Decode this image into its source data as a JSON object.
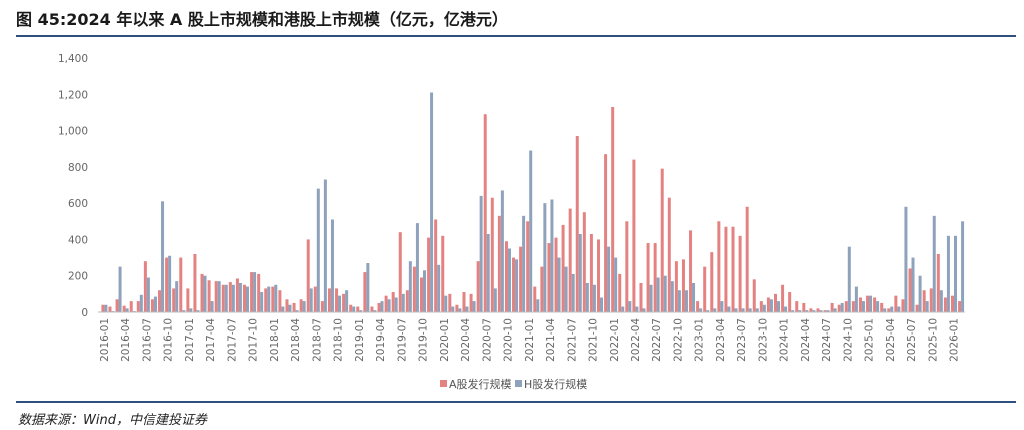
{
  "title": "图 45:2024 年以来 A 股上市规模和港股上市规模（亿元，亿港元）",
  "source": "数据来源：Wind，中信建投证券",
  "colors": {
    "a_share": "#e48282",
    "h_share": "#8ea2bb"
  },
  "chart_data": {
    "type": "bar",
    "title": "2024 年以来 A 股上市规模和港股上市规模（亿元，亿港元）",
    "ylim": [
      0,
      1400
    ],
    "yticks": [
      "0",
      "200",
      "400",
      "600",
      "800",
      "1,000",
      "1,200",
      "1,400"
    ],
    "start_month": "2016-01",
    "xtick_labels": [
      "2016-01",
      "2016-04",
      "2016-07",
      "2016-10",
      "2017-01",
      "2017-04",
      "2017-07",
      "2017-10",
      "2018-01",
      "2018-04",
      "2018-07",
      "2018-10",
      "2019-01",
      "2019-04",
      "2019-07",
      "2019-10",
      "2020-01",
      "2020-04",
      "2020-07",
      "2020-10",
      "2021-01",
      "2021-04",
      "2021-07",
      "2021-10",
      "2022-01",
      "2022-04",
      "2022-07",
      "2022-10",
      "2023-01",
      "2023-04",
      "2023-07",
      "2023-10",
      "2024-01",
      "2024-04",
      "2024-07",
      "2024-10",
      "2025-01",
      "2025-04",
      "2025-07",
      "2025-10",
      "2026-01"
    ],
    "legend_position": "bottom",
    "series": [
      {
        "name": "A股发行规模",
        "values": [
          40,
          30,
          70,
          35,
          60,
          60,
          280,
          70,
          120,
          300,
          130,
          300,
          130,
          320,
          210,
          175,
          170,
          150,
          165,
          185,
          150,
          220,
          210,
          130,
          140,
          120,
          70,
          50,
          70,
          400,
          140,
          60,
          130,
          130,
          100,
          40,
          30,
          220,
          30,
          50,
          90,
          110,
          440,
          120,
          250,
          190,
          410,
          510,
          420,
          100,
          40,
          110,
          100,
          280,
          1090,
          630,
          530,
          390,
          300,
          360,
          500,
          140,
          250,
          380,
          410,
          480,
          570,
          970,
          550,
          430,
          400,
          870,
          1130,
          210,
          500,
          840,
          160,
          380,
          380,
          790,
          630,
          280,
          290,
          450,
          60,
          250,
          330,
          500,
          470,
          470,
          420,
          580,
          180,
          60,
          80,
          100,
          150,
          110,
          60,
          50,
          20,
          20,
          10,
          50,
          40,
          60,
          60,
          80,
          90,
          80,
          50,
          20,
          90,
          70,
          240,
          40,
          120,
          130,
          320,
          80,
          90,
          60
        ]
      },
      {
        "name": "H股发行规模",
        "values": [
          40,
          5,
          250,
          20,
          5,
          95,
          190,
          85,
          610,
          310,
          170,
          10,
          20,
          10,
          200,
          60,
          170,
          150,
          150,
          160,
          140,
          220,
          110,
          140,
          150,
          30,
          40,
          10,
          60,
          130,
          680,
          730,
          510,
          90,
          120,
          30,
          10,
          270,
          10,
          60,
          70,
          80,
          100,
          280,
          490,
          230,
          1210,
          260,
          90,
          30,
          20,
          30,
          60,
          640,
          430,
          130,
          670,
          350,
          290,
          530,
          890,
          70,
          600,
          620,
          300,
          250,
          210,
          430,
          160,
          150,
          80,
          360,
          300,
          30,
          60,
          30,
          20,
          150,
          190,
          200,
          170,
          120,
          120,
          160,
          20,
          10,
          20,
          60,
          30,
          20,
          20,
          20,
          20,
          40,
          70,
          60,
          30,
          10,
          10,
          10,
          10,
          10,
          10,
          20,
          50,
          360,
          140,
          60,
          90,
          60,
          20,
          30,
          30,
          580,
          300,
          200,
          60,
          530,
          120,
          420,
          420,
          500
        ]
      }
    ]
  }
}
